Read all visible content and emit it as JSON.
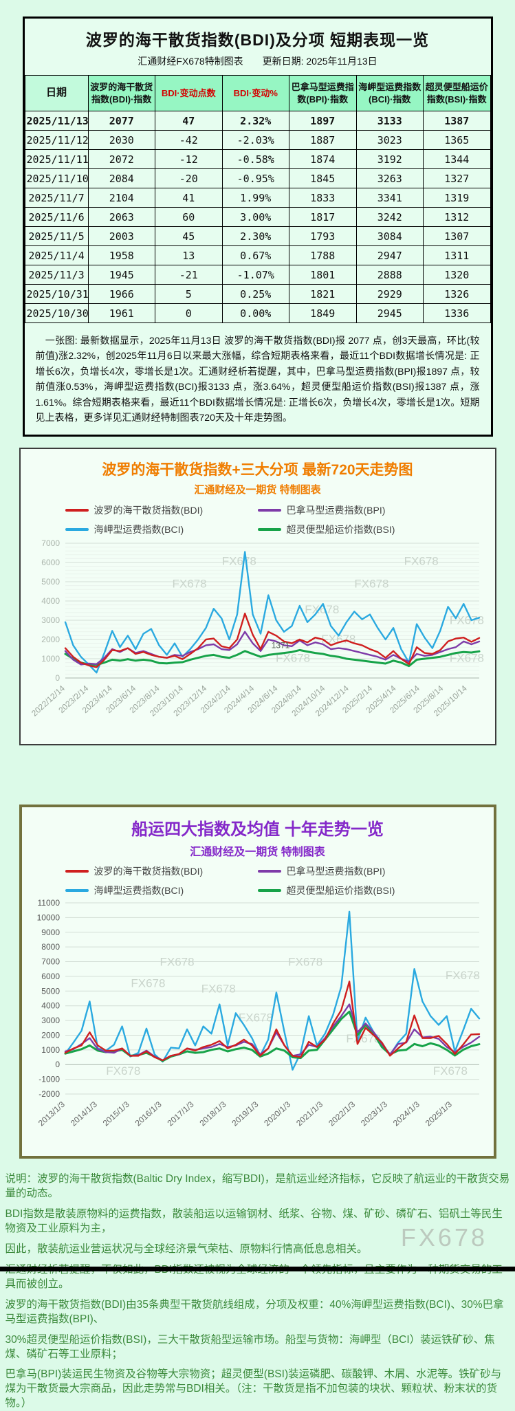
{
  "page": {
    "watermark": "FX678",
    "bg": "#dcfae8"
  },
  "table_section": {
    "title": "波罗的海干散货指数(BDI)及分项  短期表现一览",
    "subtitle": "汇通财经FX678特制图表　　更新日期: 2025年11月13日",
    "columns": [
      "日期",
      "波罗的海干散货指数(BDI)·指数",
      "BDI·变动点数",
      "BDI·变动%",
      "巴拿马型运费指数(BPI)·指数",
      "海岬型运费指数(BCI)·指数",
      "超灵便型船运价指数(BSI)·指数"
    ],
    "red_columns": [
      2,
      3
    ],
    "rows": [
      [
        "2025/11/13",
        "2077",
        "47",
        "2.32%",
        "1897",
        "3133",
        "1387"
      ],
      [
        "2025/11/12",
        "2030",
        "-42",
        "-2.03%",
        "1887",
        "3023",
        "1365"
      ],
      [
        "2025/11/11",
        "2072",
        "-12",
        "-0.58%",
        "1874",
        "3192",
        "1344"
      ],
      [
        "2025/11/10",
        "2084",
        "-20",
        "-0.95%",
        "1845",
        "3263",
        "1327"
      ],
      [
        "2025/11/7",
        "2104",
        "41",
        "1.99%",
        "1833",
        "3341",
        "1319"
      ],
      [
        "2025/11/6",
        "2063",
        "60",
        "3.00%",
        "1817",
        "3242",
        "1312"
      ],
      [
        "2025/11/5",
        "2003",
        "45",
        "2.30%",
        "1793",
        "3084",
        "1307"
      ],
      [
        "2025/11/4",
        "1958",
        "13",
        "0.67%",
        "1788",
        "2947",
        "1311"
      ],
      [
        "2025/11/3",
        "1945",
        "-21",
        "-1.07%",
        "1801",
        "2888",
        "1320"
      ],
      [
        "2025/10/31",
        "1966",
        "5",
        "0.25%",
        "1821",
        "2929",
        "1326"
      ],
      [
        "2025/10/30",
        "1961",
        "0",
        "0.00%",
        "1849",
        "2945",
        "1336"
      ]
    ],
    "note": "　一张图: 最新数据显示，2025年11月13日 波罗的海干散货指数(BDI)报 2077 点，创3天最高，环比(较前值)涨2.32%，创2025年11月6日以来最大涨幅，综合短期表格来看，最近11个BDI数据增长情况是: 正增长6次，负增长4次，零增长是1次。汇通财经析若提醒，其中，巴拿马型运费指数(BPI)报1897 点，较前值涨0.53%，海岬型运费指数(BCI)报3133 点，涨3.64%，超灵便型船运价指数(BSI)报1387 点，涨1.61%。综合短期表格来看，最近11个BDI数据增长情况是: 正增长6次，负增长4次，零增长是1次。短期见上表格，更多详见汇通财经特制图表720天及十年走势图。"
  },
  "chart_data": [
    {
      "type": "line",
      "title": "波罗的海干散货指数+三大分项  最新720天走势图",
      "subtitle": "汇通财经及一期货  特制图表",
      "ylim": [
        0,
        7000
      ],
      "yticks": [
        0,
        1000,
        2000,
        3000,
        4000,
        5000,
        6000,
        7000
      ],
      "grid": true,
      "legend_position": "top",
      "annotation": {
        "text": "1371",
        "fx": 0.52,
        "value": 1560
      },
      "xticklabels": [
        "2022/12/14",
        "2023/2/14",
        "2023/4/14",
        "2023/6/14",
        "2023/8/14",
        "2023/10/14",
        "2023/12/14",
        "2024/2/14",
        "2024/4/14",
        "2024/6/14",
        "2024/8/14",
        "2024/10/14",
        "2024/12/14",
        "2025/2/14",
        "2025/4/14",
        "2025/6/14",
        "2025/8/14",
        "2025/10/14"
      ],
      "series": [
        {
          "name": "波罗的海干散货指数(BDI)",
          "color": "#cf1f1f",
          "values": [
            1550,
            1100,
            800,
            650,
            560,
            950,
            1450,
            1400,
            1550,
            1250,
            1350,
            1200,
            1100,
            1050,
            1150,
            980,
            1250,
            1550,
            2000,
            2050,
            1650,
            1550,
            2000,
            3350,
            2250,
            1500,
            2400,
            2200,
            1900,
            1800,
            2000,
            1850,
            2100,
            2000,
            1700,
            1850,
            1950,
            1800,
            1700,
            1500,
            1350,
            1050,
            1400,
            1000,
            720,
            1600,
            1300,
            1250,
            1450,
            1900,
            2050,
            2100,
            1880,
            2077
          ]
        },
        {
          "name": "巴拿马型运费指数(BPI)",
          "color": "#7e3ba8",
          "values": [
            1400,
            950,
            700,
            750,
            720,
            1050,
            1500,
            1350,
            1550,
            1300,
            1400,
            1250,
            1100,
            1050,
            1200,
            1150,
            1350,
            1500,
            1700,
            1750,
            1500,
            1450,
            1750,
            2400,
            1800,
            1400,
            2000,
            1900,
            1700,
            1650,
            1950,
            1700,
            1850,
            1750,
            1500,
            1550,
            1500,
            1400,
            1300,
            1200,
            1100,
            950,
            1200,
            1000,
            850,
            1250,
            1150,
            1200,
            1350,
            1500,
            1600,
            1900,
            1750,
            1897
          ]
        },
        {
          "name": "海岬型运费指数(BCI)",
          "color": "#2aa9e0",
          "values": [
            2900,
            1700,
            1100,
            700,
            280,
            1300,
            2450,
            1600,
            2200,
            1500,
            2300,
            2550,
            1700,
            1200,
            1800,
            1100,
            1500,
            2000,
            2600,
            3600,
            3100,
            2000,
            3300,
            6550,
            3300,
            2300,
            4300,
            3000,
            2400,
            2700,
            3750,
            2900,
            3300,
            3850,
            2700,
            2200,
            2900,
            3450,
            3050,
            3300,
            2600,
            2000,
            2600,
            1500,
            800,
            2800,
            2100,
            1550,
            2450,
            3700,
            3100,
            3850,
            3000,
            3133
          ]
        },
        {
          "name": "超灵便型船运价指数(BSI)",
          "color": "#17a349",
          "values": [
            1250,
            1000,
            800,
            700,
            680,
            800,
            950,
            900,
            980,
            900,
            950,
            900,
            780,
            760,
            800,
            820,
            950,
            1050,
            1150,
            1200,
            1100,
            1050,
            1200,
            1400,
            1250,
            1100,
            1200,
            1250,
            1300,
            1350,
            1450,
            1371,
            1300,
            1250,
            1150,
            1100,
            1000,
            950,
            900,
            850,
            800,
            750,
            900,
            800,
            620,
            950,
            1000,
            1050,
            1100,
            1200,
            1300,
            1350,
            1320,
            1387
          ]
        }
      ]
    },
    {
      "type": "line",
      "title": "船运四大指数及均值 十年走势一览",
      "subtitle": "汇通财经及一期货 特制图表",
      "ylim": [
        -2000,
        11000
      ],
      "yticks": [
        -2000,
        -1000,
        0,
        1000,
        2000,
        3000,
        4000,
        5000,
        6000,
        7000,
        8000,
        9000,
        10000,
        11000
      ],
      "grid": true,
      "legend_position": "top",
      "xticklabels": [
        "2013/1/3",
        "2014/1/3",
        "2015/1/3",
        "2016/1/3",
        "2017/1/3",
        "2018/1/3",
        "2019/1/3",
        "2020/1/3",
        "2021/1/3",
        "2022/1/3",
        "2023/1/3",
        "2024/1/3",
        "2025/1/3"
      ],
      "series": [
        {
          "name": "波罗的海干散货指数(BDI)",
          "color": "#cf1f1f",
          "values": [
            800,
            1100,
            1300,
            2200,
            1300,
            950,
            950,
            1100,
            600,
            600,
            900,
            500,
            290,
            600,
            720,
            1100,
            950,
            1200,
            1350,
            1600,
            1100,
            1350,
            1700,
            1300,
            600,
            1100,
            2400,
            1300,
            600,
            500,
            1550,
            1200,
            1700,
            2800,
            3700,
            5650,
            1400,
            2500,
            2000,
            1500,
            600,
            1100,
            1550,
            3350,
            1800,
            1800,
            1950,
            1400,
            720,
            1350,
            2050,
            2077
          ]
        },
        {
          "name": "巴拿马型运费指数(BPI)",
          "color": "#7e3ba8",
          "values": [
            900,
            1050,
            1400,
            1800,
            1050,
            850,
            800,
            1100,
            600,
            650,
            950,
            550,
            300,
            600,
            700,
            1100,
            1000,
            1100,
            1200,
            1400,
            1200,
            1300,
            1550,
            1400,
            700,
            1100,
            2200,
            1300,
            600,
            700,
            1350,
            1200,
            1800,
            2600,
            3300,
            4100,
            2200,
            2800,
            2200,
            1400,
            700,
            1400,
            1500,
            2400,
            1850,
            1900,
            1750,
            1200,
            850,
            1200,
            1500,
            1897
          ]
        },
        {
          "name": "海岬型运费指数(BCI)",
          "color": "#2aa9e0",
          "values": [
            750,
            1500,
            2300,
            4300,
            1100,
            950,
            1350,
            2600,
            550,
            800,
            2450,
            700,
            200,
            1150,
            1100,
            2400,
            1300,
            2600,
            2100,
            4100,
            1300,
            3500,
            2700,
            1800,
            600,
            1700,
            4900,
            2200,
            -350,
            800,
            3300,
            1300,
            2100,
            3400,
            5300,
            10400,
            1600,
            3200,
            2200,
            1500,
            650,
            1500,
            2100,
            6500,
            4300,
            3300,
            2700,
            3300,
            900,
            2300,
            3800,
            3133
          ]
        },
        {
          "name": "超灵便型船运价指数(BSI)",
          "color": "#17a349",
          "values": [
            750,
            900,
            1050,
            1300,
            950,
            850,
            900,
            1000,
            600,
            650,
            800,
            550,
            250,
            550,
            700,
            900,
            800,
            850,
            1000,
            1100,
            900,
            1050,
            1150,
            1000,
            550,
            750,
            1100,
            950,
            500,
            450,
            950,
            1000,
            1700,
            2400,
            3100,
            3600,
            2000,
            2700,
            2100,
            1200,
            700,
            950,
            1000,
            1400,
            1250,
            1450,
            1300,
            1000,
            620,
            1000,
            1250,
            1387
          ]
        }
      ]
    }
  ],
  "description": {
    "lines": [
      "说明：波罗的海干散货指数(Baltic Dry Index，缩写BDI)，是航运业经济指标，它反映了航运业的干散货交易量的动态。",
      "BDI指数是散装原物料的运费指数，散装船运以运输钢材、纸浆、谷物、煤、矿砂、磷矿石、铝矾土等民生物资及工业原料为主，",
      "因此，散装航运业营运状况与全球经济景气荣枯、原物料行情高低息息相关。",
      "汇通财经析若提醒，不仅如此，BDI指数还被视为全球经济的一个领先指标，且主要作为一种期货交易的工具而被创立。",
      "波罗的海干散货指数(BDI)由35条典型干散货航线组成，分项及权重：40%海岬型运费指数(BCI)、30%巴拿马型运费指数(BPI)、",
      "30%超灵便型船运价指数(BSI)，三大干散货船型运输市场。船型与货物：海岬型（BCI）装运铁矿砂、焦煤、磷矿石等工业原料；",
      "巴拿马(BPI)装运民生物资及谷物等大宗物资；超灵便型(BSI)装运磷肥、碳酸钾、木屑、水泥等。铁矿砂与煤为干散货最大宗商品，因此走势常与BDI相关。（注：干散货是指不加包装的块状、颗粒状、粉末状的货物。）"
    ]
  }
}
